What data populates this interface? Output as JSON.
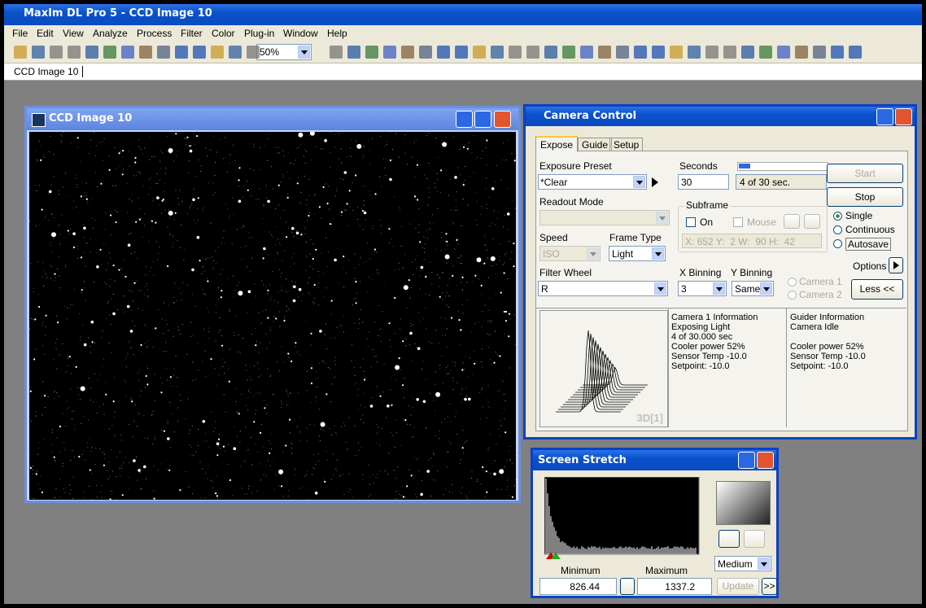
{
  "app": {
    "title": "MaxIm DL Pro 5 - CCD Image 10"
  },
  "menu": [
    "File",
    "Edit",
    "View",
    "Analyze",
    "Process",
    "Filter",
    "Color",
    "Plug-in",
    "Window",
    "Help"
  ],
  "toolbar": {
    "zoom": "50%"
  },
  "tabs": [
    "CCD Image 10"
  ],
  "image_window": {
    "title": "CCD Image 10"
  },
  "camera_control": {
    "title": "Camera Control",
    "tabs": [
      "Expose",
      "Guide",
      "Setup"
    ],
    "exposure_preset_label": "Exposure Preset",
    "exposure_preset": "*Clear",
    "seconds_label": "Seconds",
    "seconds": "30",
    "progress": "4 of 30 sec.",
    "readout_mode_label": "Readout Mode",
    "subframe_label": "Subframe",
    "subframe_on": "On",
    "subframe_mouse": "Mouse",
    "subframe_coords": "X: 652 Y:  2 W:  90 H:  42",
    "speed_label": "Speed",
    "speed": "ISO",
    "frame_type_label": "Frame Type",
    "frame_type": "Light",
    "filter_wheel_label": "Filter Wheel",
    "filter": "R",
    "x_binning_label": "X Binning",
    "x_binning": "3",
    "y_binning_label": "Y Binning",
    "y_binning": "Same",
    "camera1": "Camera 1",
    "camera2": "Camera 2",
    "start": "Start",
    "stop": "Stop",
    "modes": [
      "Single",
      "Continuous",
      "Autosave"
    ],
    "options": "Options",
    "less": "Less <<",
    "plot_label": "3D[1]",
    "camera1_info": [
      "Camera 1 Information",
      "Exposing Light",
      "4 of 30.000 sec",
      "Cooler power 52%",
      "Sensor Temp -10.0",
      "Setpoint: -10.0"
    ],
    "guider_info": [
      "Guider Information",
      "Camera Idle",
      "Cooler power 52%",
      "Sensor Temp -10.0",
      "Setpoint: -10.0"
    ]
  },
  "screen_stretch": {
    "title": "Screen Stretch",
    "minimum_label": "Minimum",
    "maximum_label": "Maximum",
    "minimum": "826.44",
    "maximum": "1337.2",
    "preset": "Medium",
    "update": "Update",
    "more": ">>"
  }
}
